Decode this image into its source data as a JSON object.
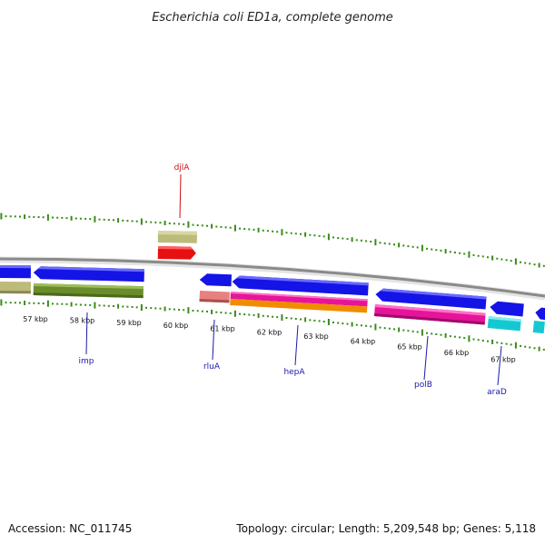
{
  "title": "Escherichia coli ED1a, complete genome",
  "footer": {
    "accession": "Accession: NC_011745",
    "topology": "Topology: circular; Length: 5,209,548 bp; Genes: 5,118"
  },
  "colors": {
    "backbone": "#8a8a8a",
    "tick": "#3a8a1a",
    "label_blue": "#1a1aaa",
    "label_red": "#cc1111",
    "gene_blue": "#1414e6",
    "gene_olive": "#6b8c2a",
    "gene_khaki": "#bdbb7a",
    "gene_red": "#e61010",
    "gene_salmon": "#e88080",
    "gene_magenta": "#e6149a",
    "gene_orange": "#f08c00",
    "gene_cyan": "#14c8d2"
  },
  "axis": {
    "unit": "kbp",
    "ticks": [
      {
        "kbp": 57,
        "label": "57 kbp"
      },
      {
        "kbp": 58,
        "label": "58 kbp"
      },
      {
        "kbp": 59,
        "label": "59 kbp"
      },
      {
        "kbp": 60,
        "label": "60 kbp"
      },
      {
        "kbp": 61,
        "label": "61 kbp"
      },
      {
        "kbp": 62,
        "label": "62 kbp"
      },
      {
        "kbp": 63,
        "label": "63 kbp"
      },
      {
        "kbp": 64,
        "label": "64 kbp"
      },
      {
        "kbp": 65,
        "label": "65 kbp"
      },
      {
        "kbp": 66,
        "label": "66 kbp"
      },
      {
        "kbp": 67,
        "label": "67 kbp"
      }
    ]
  },
  "gene_labels": {
    "djlA": "djlA",
    "imp": "imp",
    "rluA": "rluA",
    "hepA": "hepA",
    "polB": "polB",
    "araD": "araD"
  }
}
